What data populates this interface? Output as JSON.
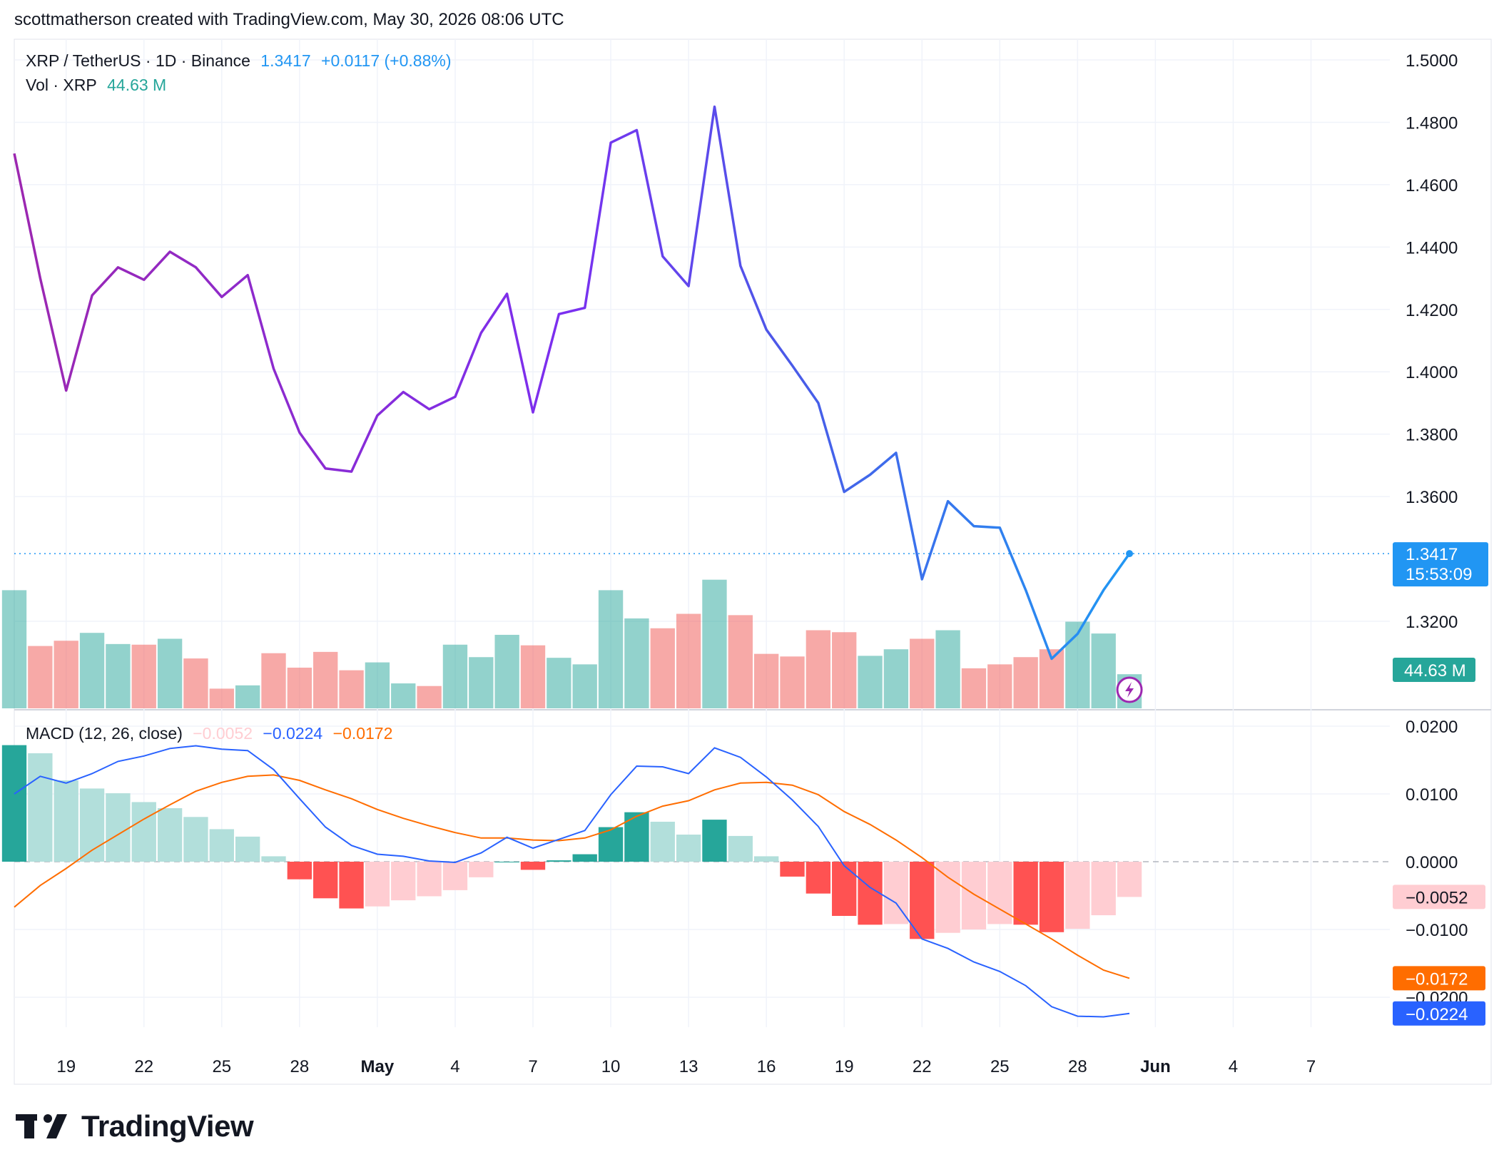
{
  "header": {
    "credit": "scottmatherson created with TradingView.com, May 30, 2026 08:06 UTC"
  },
  "brand": {
    "logo_text": "TradingView"
  },
  "colors": {
    "price_up": "#2962ff",
    "price_down": "#9c27b0",
    "price_line_light": "#2196f3",
    "vol_up": "#26a69a",
    "vol_down": "#ef5350",
    "macd_line": "#2962ff",
    "signal_line": "#ff6d00",
    "hist_pos_strong": "#26a69a",
    "hist_pos_weak": "#b2dfdb",
    "hist_neg_strong": "#ff5252",
    "hist_neg_weak": "#ffcdd2",
    "grid": "#f0f3fa",
    "axis_text": "#131722"
  },
  "legend": {
    "symbol": "XRP / TetherUS · 1D · Binance",
    "last": "1.3417",
    "change": "+0.0117 (+0.88%)",
    "vol_label": "Vol · XRP",
    "vol_value": "44.63 M",
    "macd_label": "MACD (12, 26, close)",
    "macd_hist": "−0.0052",
    "macd_line": "−0.0224",
    "macd_signal": "−0.0172"
  },
  "price_axis": {
    "ticks": [
      "1.5000",
      "1.4800",
      "1.4600",
      "1.4400",
      "1.4200",
      "1.4000",
      "1.3800",
      "1.3600",
      "1.3200"
    ],
    "tick_values": [
      1.5,
      1.48,
      1.46,
      1.44,
      1.42,
      1.4,
      1.38,
      1.36,
      1.32
    ],
    "last_price_label": "1.3417",
    "countdown": "15:53:09",
    "volume_label": "44.63 M"
  },
  "macd_axis": {
    "ticks": [
      "0.0200",
      "0.0100",
      "0.0000",
      "−0.0100",
      "−0.0200"
    ],
    "tick_values": [
      0.02,
      0.01,
      0.0,
      -0.01,
      -0.02
    ],
    "hist_label": "−0.0052",
    "signal_label": "−0.0172",
    "macd_label": "−0.0224"
  },
  "time_axis": {
    "labels": [
      {
        "text": "19",
        "day": 2
      },
      {
        "text": "22",
        "day": 5
      },
      {
        "text": "25",
        "day": 8
      },
      {
        "text": "28",
        "day": 11
      },
      {
        "text": "May",
        "day": 14
      },
      {
        "text": "4",
        "day": 17
      },
      {
        "text": "7",
        "day": 20
      },
      {
        "text": "10",
        "day": 23
      },
      {
        "text": "13",
        "day": 26
      },
      {
        "text": "16",
        "day": 29
      },
      {
        "text": "19",
        "day": 32
      },
      {
        "text": "22",
        "day": 35
      },
      {
        "text": "25",
        "day": 38
      },
      {
        "text": "28",
        "day": 41
      },
      {
        "text": "Jun",
        "day": 44
      },
      {
        "text": "4",
        "day": 47
      },
      {
        "text": "7",
        "day": 50
      }
    ]
  },
  "chart_data": [
    {
      "type": "line",
      "title": "XRP / TetherUS · 1D · Binance",
      "x_start": "Apr 17",
      "x": [
        "Apr 17",
        "Apr 18",
        "Apr 19",
        "Apr 20",
        "Apr 21",
        "Apr 22",
        "Apr 23",
        "Apr 24",
        "Apr 25",
        "Apr 26",
        "Apr 27",
        "Apr 28",
        "Apr 29",
        "Apr 30",
        "May 1",
        "May 2",
        "May 3",
        "May 4",
        "May 5",
        "May 6",
        "May 7",
        "May 8",
        "May 9",
        "May 10",
        "May 11",
        "May 12",
        "May 13",
        "May 14",
        "May 15",
        "May 16",
        "May 17",
        "May 18",
        "May 19",
        "May 20",
        "May 21",
        "May 22",
        "May 23",
        "May 24",
        "May 25",
        "May 26",
        "May 27",
        "May 28",
        "May 29",
        "May 30"
      ],
      "close": [
        1.47,
        1.43,
        1.394,
        1.4245,
        1.4335,
        1.4295,
        1.4385,
        1.4335,
        1.424,
        1.431,
        1.401,
        1.3805,
        1.369,
        1.368,
        1.386,
        1.3935,
        1.388,
        1.392,
        1.4125,
        1.425,
        1.387,
        1.4185,
        1.4205,
        1.4735,
        1.4775,
        1.437,
        1.4275,
        1.485,
        1.434,
        1.4135,
        1.402,
        1.39,
        1.3615,
        1.367,
        1.374,
        1.3335,
        1.3585,
        1.3505,
        1.35,
        1.33,
        1.308,
        1.316,
        1.33,
        1.3417
      ],
      "ylim": [
        1.3,
        1.505
      ]
    },
    {
      "type": "bar",
      "title": "Vol · XRP",
      "x": [
        "Apr 17",
        "Apr 18",
        "Apr 19",
        "Apr 20",
        "Apr 21",
        "Apr 22",
        "Apr 23",
        "Apr 24",
        "Apr 25",
        "Apr 26",
        "Apr 27",
        "Apr 28",
        "Apr 29",
        "Apr 30",
        "May 1",
        "May 2",
        "May 3",
        "May 4",
        "May 5",
        "May 6",
        "May 7",
        "May 8",
        "May 9",
        "May 10",
        "May 11",
        "May 12",
        "May 13",
        "May 14",
        "May 15",
        "May 16",
        "May 17",
        "May 18",
        "May 19",
        "May 20",
        "May 21",
        "May 22",
        "May 23",
        "May 24",
        "May 25",
        "May 26",
        "May 27",
        "May 28",
        "May 29",
        "May 30"
      ],
      "values": [
        180,
        95,
        103,
        115,
        98,
        97,
        106,
        76,
        30,
        35,
        84,
        62,
        86,
        58,
        70,
        38,
        34,
        97,
        78,
        112,
        96,
        77,
        67,
        180,
        137,
        122,
        144,
        196,
        142,
        83,
        79,
        119,
        116,
        80,
        90,
        106,
        119,
        61,
        67,
        78,
        90,
        132,
        114,
        52
      ],
      "direction": [
        "up",
        "down",
        "down",
        "up",
        "up",
        "down",
        "up",
        "down",
        "down",
        "up",
        "down",
        "down",
        "down",
        "down",
        "up",
        "up",
        "down",
        "up",
        "up",
        "up",
        "down",
        "up",
        "up",
        "up",
        "up",
        "down",
        "down",
        "up",
        "down",
        "down",
        "down",
        "down",
        "down",
        "up",
        "up",
        "down",
        "up",
        "down",
        "down",
        "down",
        "down",
        "up",
        "up",
        "up"
      ]
    },
    {
      "type": "bar",
      "title": "MACD (12, 26, close)",
      "x": [
        "Apr 17",
        "Apr 18",
        "Apr 19",
        "Apr 20",
        "Apr 21",
        "Apr 22",
        "Apr 23",
        "Apr 24",
        "Apr 25",
        "Apr 26",
        "Apr 27",
        "Apr 28",
        "Apr 29",
        "Apr 30",
        "May 1",
        "May 2",
        "May 3",
        "May 4",
        "May 5",
        "May 6",
        "May 7",
        "May 8",
        "May 9",
        "May 10",
        "May 11",
        "May 12",
        "May 13",
        "May 14",
        "May 15",
        "May 16",
        "May 17",
        "May 18",
        "May 19",
        "May 20",
        "May 21",
        "May 22",
        "May 23",
        "May 24",
        "May 25",
        "May 26",
        "May 27",
        "May 28",
        "May 29",
        "May 30"
      ],
      "histogram": [
        0.0172,
        0.016,
        0.012,
        0.0108,
        0.0101,
        0.0088,
        0.0079,
        0.0066,
        0.0048,
        0.0037,
        0.0008,
        -0.0026,
        -0.0054,
        -0.0069,
        -0.0066,
        -0.0057,
        -0.0051,
        -0.0042,
        -0.0023,
        0.0,
        -0.0012,
        0.0002,
        0.0011,
        0.0051,
        0.0073,
        0.0059,
        0.004,
        0.0062,
        0.0038,
        0.0008,
        -0.0022,
        -0.0047,
        -0.008,
        -0.0093,
        -0.0092,
        -0.0114,
        -0.0105,
        -0.01,
        -0.0092,
        -0.0093,
        -0.0104,
        -0.0099,
        -0.0079,
        -0.0052
      ],
      "macd": [
        0.01,
        0.0126,
        0.0116,
        0.013,
        0.0148,
        0.0156,
        0.0167,
        0.0171,
        0.0166,
        0.0164,
        0.0136,
        0.0093,
        0.0051,
        0.0024,
        0.0011,
        0.0008,
        0.0001,
        -0.0001,
        0.0013,
        0.0036,
        0.002,
        0.0033,
        0.0046,
        0.0099,
        0.0141,
        0.014,
        0.013,
        0.0168,
        0.0154,
        0.0125,
        0.0091,
        0.0052,
        -0.0006,
        -0.0038,
        -0.0061,
        -0.0114,
        -0.0128,
        -0.0148,
        -0.0162,
        -0.0183,
        -0.0214,
        -0.0228,
        -0.0229,
        -0.0224
      ],
      "signal": [
        -0.0067,
        -0.0035,
        -0.001,
        0.0017,
        0.004,
        0.0063,
        0.0084,
        0.0104,
        0.0117,
        0.0126,
        0.0128,
        0.012,
        0.0106,
        0.0093,
        0.0077,
        0.0064,
        0.0053,
        0.0043,
        0.0035,
        0.0035,
        0.0032,
        0.0031,
        0.0035,
        0.0047,
        0.0067,
        0.0082,
        0.009,
        0.0106,
        0.0116,
        0.0117,
        0.0113,
        0.0099,
        0.0074,
        0.0055,
        0.0032,
        0.0006,
        -0.0023,
        -0.0048,
        -0.007,
        -0.0092,
        -0.0114,
        -0.0138,
        -0.016,
        -0.0172
      ],
      "ylim": [
        -0.024,
        0.02
      ]
    }
  ]
}
